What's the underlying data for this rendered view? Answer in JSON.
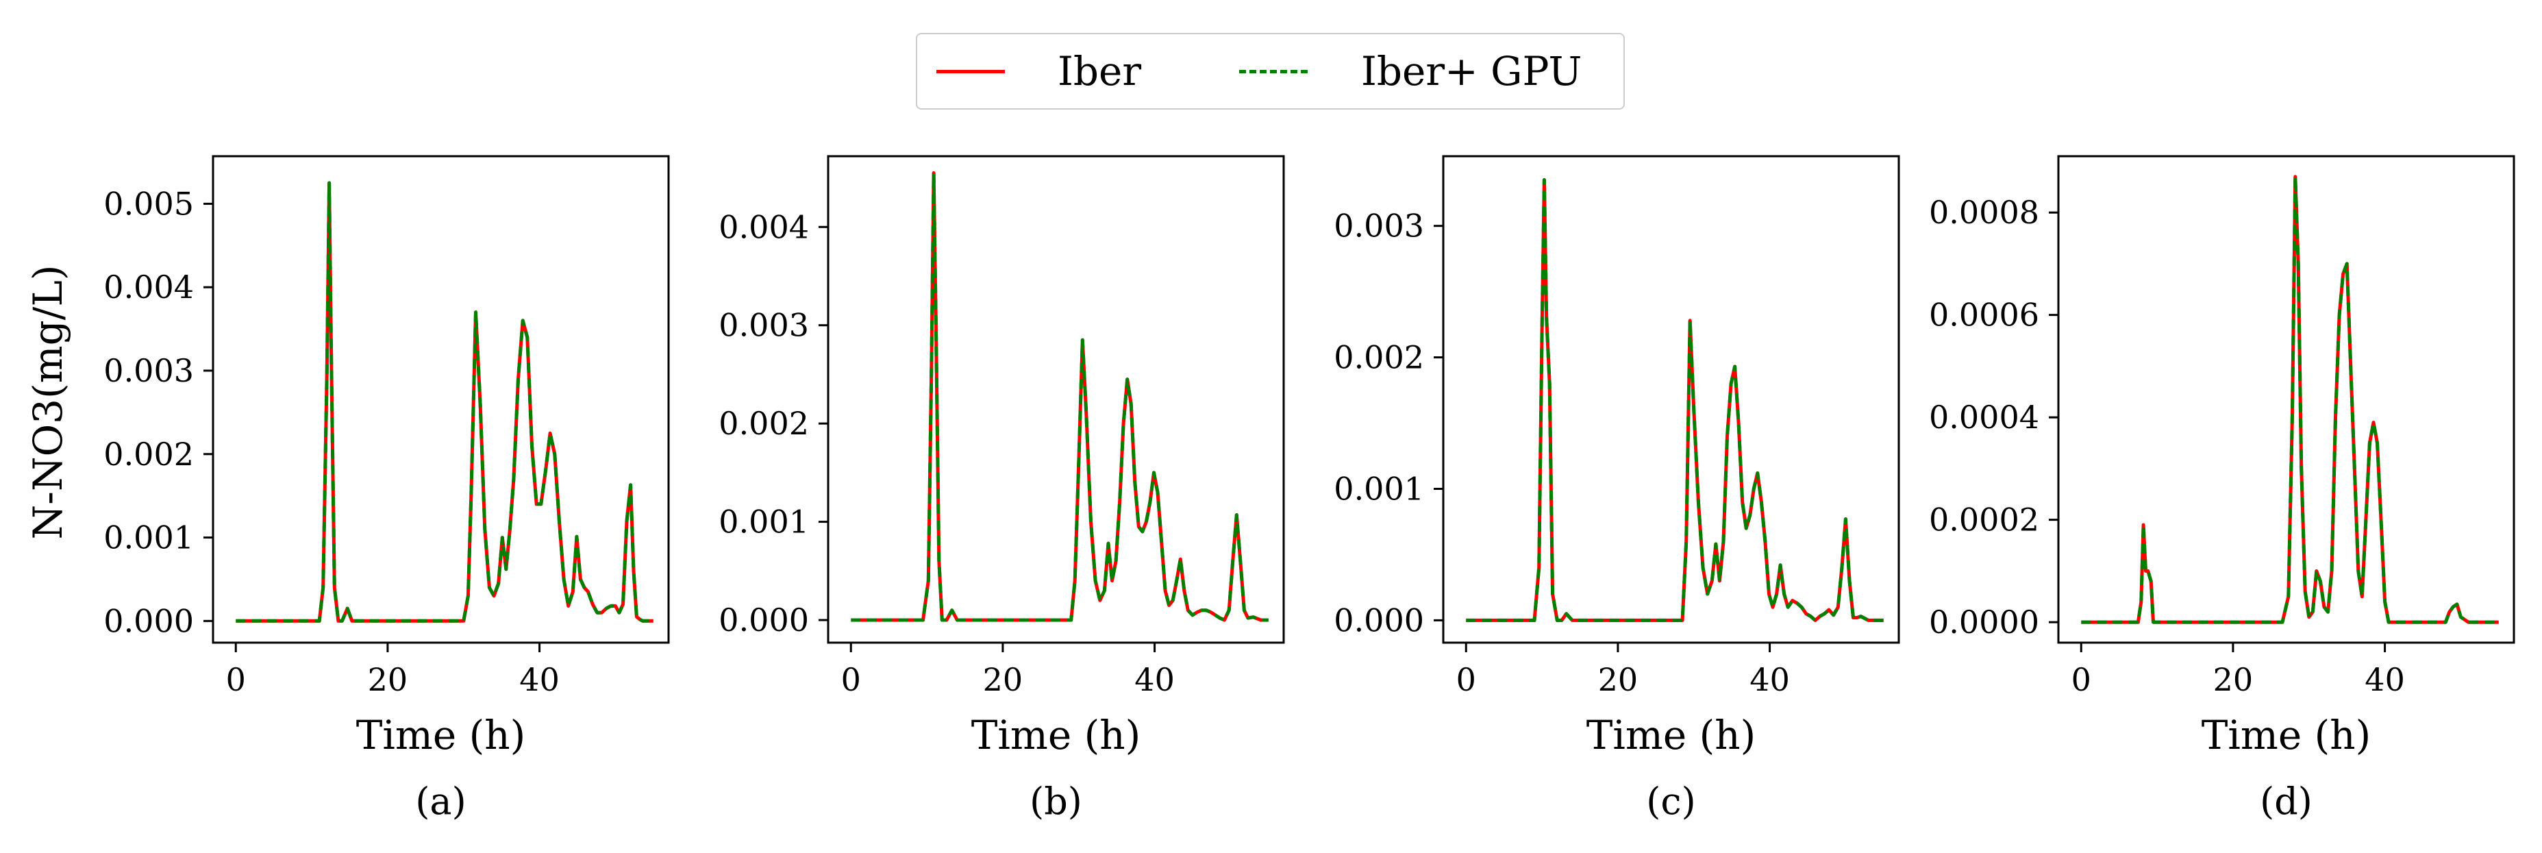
{
  "legend": {
    "series_1": "Iber",
    "series_2": "Iber+ GPU"
  },
  "colors": {
    "iber": "#ff0000",
    "iber_gpu": "#008000"
  },
  "ylabel": "N-NO3(mg/L)",
  "chart_data": [
    {
      "type": "line",
      "panel": "(a)",
      "xlabel": "Time (h)",
      "ylabel": "N-NO3(mg/L)",
      "xlim": [
        -3,
        57
      ],
      "ylim": [
        -0.00026,
        0.00557
      ],
      "xticks": [
        0,
        20,
        40
      ],
      "xtick_labels": [
        "0",
        "20",
        "40"
      ],
      "yticks": [
        0,
        0.001,
        0.002,
        0.003,
        0.004,
        0.005
      ],
      "ytick_labels": [
        "0.000",
        "0.001",
        "0.002",
        "0.003",
        "0.004",
        "0.005"
      ],
      "series": [
        {
          "name": "Iber",
          "color": "#ff0000",
          "style": "solid"
        },
        {
          "name": "Iber+ GPU",
          "color": "#008000",
          "style": "dashed"
        }
      ],
      "x": [
        0,
        10,
        11,
        11.5,
        12,
        12.3,
        12.6,
        13,
        13.5,
        14,
        14.7,
        15.3,
        16,
        20,
        28,
        30,
        30.6,
        31,
        31.6,
        32.2,
        32.8,
        33.4,
        34,
        34.6,
        35.1,
        35.6,
        36.1,
        36.6,
        37.2,
        37.8,
        38.4,
        39,
        39.6,
        40.2,
        40.8,
        41.4,
        42,
        42.6,
        43.2,
        43.8,
        44.4,
        44.9,
        45.4,
        45.9,
        46.4,
        47,
        47.6,
        48.2,
        48.8,
        49.4,
        50,
        50.5,
        51,
        51.5,
        52,
        52.4,
        52.8,
        53.2,
        53.6,
        54,
        55
      ],
      "values": [
        0,
        0,
        0,
        0.0004,
        0.003,
        0.00525,
        0.003,
        0.0004,
        0,
        0,
        0.00015,
        0,
        0,
        0,
        0,
        0,
        0.0003,
        0.0015,
        0.0037,
        0.0026,
        0.0011,
        0.0004,
        0.0003,
        0.00045,
        0.001,
        0.00062,
        0.0011,
        0.0017,
        0.0029,
        0.0036,
        0.0034,
        0.0021,
        0.0014,
        0.0014,
        0.0018,
        0.00225,
        0.002,
        0.0012,
        0.0005,
        0.00018,
        0.00035,
        0.00101,
        0.0005,
        0.0004,
        0.00035,
        0.0002,
        0.0001,
        0.0001,
        0.00015,
        0.00018,
        0.00018,
        0.0001,
        0.0002,
        0.0012,
        0.00163,
        0.0006,
        5e-05,
        2e-05,
        0,
        0,
        0
      ]
    },
    {
      "type": "line",
      "panel": "(b)",
      "xlabel": "Time (h)",
      "xlim": [
        -3,
        57
      ],
      "ylim": [
        -0.00023,
        0.00472
      ],
      "xticks": [
        0,
        20,
        40
      ],
      "xtick_labels": [
        "0",
        "20",
        "40"
      ],
      "yticks": [
        0,
        0.001,
        0.002,
        0.003,
        0.004
      ],
      "ytick_labels": [
        "0.000",
        "0.001",
        "0.002",
        "0.003",
        "0.004"
      ],
      "series": [
        {
          "name": "Iber",
          "color": "#ff0000",
          "style": "solid"
        },
        {
          "name": "Iber+ GPU",
          "color": "#008000",
          "style": "dashed"
        }
      ],
      "x": [
        0,
        9.5,
        10.2,
        10.6,
        10.9,
        11.2,
        11.6,
        12,
        12.6,
        13.3,
        14,
        20,
        27,
        29,
        29.5,
        30,
        30.5,
        31,
        31.6,
        32.2,
        32.8,
        33.4,
        33.9,
        34.4,
        34.9,
        35.4,
        35.9,
        36.4,
        36.9,
        37.4,
        37.9,
        38.4,
        38.9,
        39.4,
        39.9,
        40.4,
        40.9,
        41.4,
        41.9,
        42.4,
        42.9,
        43.4,
        43.9,
        44.4,
        45,
        45.6,
        46.2,
        46.8,
        47.4,
        48,
        48.6,
        49.2,
        49.8,
        50.3,
        50.8,
        51.3,
        51.8,
        52.3,
        53,
        54,
        55
      ],
      "values": [
        0,
        0,
        0.0004,
        0.0025,
        0.00455,
        0.003,
        0.0006,
        0,
        0,
        0.0001,
        0,
        0,
        0,
        0,
        0.0004,
        0.0016,
        0.00285,
        0.0021,
        0.001,
        0.0004,
        0.0002,
        0.0003,
        0.00078,
        0.0004,
        0.0006,
        0.0012,
        0.002,
        0.00245,
        0.0022,
        0.0014,
        0.00095,
        0.0009,
        0.001,
        0.0012,
        0.0015,
        0.0013,
        0.0008,
        0.0003,
        0.00015,
        0.0002,
        0.0004,
        0.00062,
        0.0003,
        0.0001,
        5e-05,
        8e-05,
        0.0001,
        0.0001,
        8e-05,
        5e-05,
        2e-05,
        0,
        0.0001,
        0.0006,
        0.00107,
        0.0006,
        0.0001,
        2e-05,
        3e-05,
        0,
        0
      ]
    },
    {
      "type": "line",
      "panel": "(c)",
      "xlabel": "Time (h)",
      "xlim": [
        -3,
        57
      ],
      "ylim": [
        -0.00017,
        0.00353
      ],
      "xticks": [
        0,
        20,
        40
      ],
      "xtick_labels": [
        "0",
        "20",
        "40"
      ],
      "yticks": [
        0,
        0.001,
        0.002,
        0.003
      ],
      "ytick_labels": [
        "0.000",
        "0.001",
        "0.002",
        "0.003"
      ],
      "series": [
        {
          "name": "Iber",
          "color": "#ff0000",
          "style": "solid"
        },
        {
          "name": "Iber+ GPU",
          "color": "#008000",
          "style": "dashed"
        }
      ],
      "x": [
        0,
        9,
        9.6,
        10,
        10.3,
        10.6,
        11,
        11.4,
        12,
        12.6,
        13.2,
        14,
        20,
        27,
        28.5,
        29,
        29.5,
        30,
        30.6,
        31.2,
        31.8,
        32.4,
        32.9,
        33.4,
        33.9,
        34.4,
        34.9,
        35.4,
        35.9,
        36.4,
        36.9,
        37.4,
        37.9,
        38.4,
        38.9,
        39.4,
        39.9,
        40.4,
        40.9,
        41.4,
        41.9,
        42.4,
        43,
        43.6,
        44.2,
        44.8,
        45.4,
        46,
        46.6,
        47.2,
        47.8,
        48.4,
        49,
        49.5,
        50,
        50.5,
        51,
        51.5,
        52,
        53,
        55
      ],
      "values": [
        0,
        0,
        0.0004,
        0.0022,
        0.00335,
        0.0023,
        0.0018,
        0.0002,
        0,
        0,
        5e-05,
        0,
        0,
        0,
        0,
        0.0006,
        0.00228,
        0.0016,
        0.0009,
        0.0004,
        0.0002,
        0.0003,
        0.00058,
        0.0003,
        0.0006,
        0.0014,
        0.0018,
        0.00193,
        0.0015,
        0.0009,
        0.0007,
        0.0008,
        0.001,
        0.00112,
        0.0009,
        0.0006,
        0.0002,
        0.0001,
        0.0002,
        0.00042,
        0.0002,
        0.0001,
        0.00015,
        0.00013,
        0.0001,
        5e-05,
        3e-05,
        0,
        3e-05,
        5e-05,
        8e-05,
        4e-05,
        0.0001,
        0.0004,
        0.00077,
        0.0003,
        2e-05,
        2e-05,
        3e-05,
        0,
        0
      ]
    },
    {
      "type": "line",
      "panel": "(d)",
      "xlabel": "Time (h)",
      "xlim": [
        -3,
        57
      ],
      "ylim": [
        -4e-05,
        0.00091
      ],
      "xticks": [
        0,
        20,
        40
      ],
      "xtick_labels": [
        "0",
        "20",
        "40"
      ],
      "yticks": [
        0,
        0.0002,
        0.0004,
        0.0006,
        0.0008
      ],
      "ytick_labels": [
        "0.0000",
        "0.0002",
        "0.0004",
        "0.0006",
        "0.0008"
      ],
      "series": [
        {
          "name": "Iber",
          "color": "#ff0000",
          "style": "solid"
        },
        {
          "name": "Iber+ GPU",
          "color": "#008000",
          "style": "dashed"
        }
      ],
      "x": [
        0,
        7.5,
        7.9,
        8.2,
        8.5,
        8.8,
        9.2,
        9.5,
        10,
        12,
        20,
        26.5,
        27.3,
        27.8,
        28.2,
        28.6,
        29,
        29.5,
        30,
        30.5,
        31,
        31.5,
        32,
        32.5,
        33,
        33.5,
        34,
        34.5,
        35,
        35.5,
        36,
        36.5,
        37,
        37.5,
        38,
        38.5,
        39,
        39.5,
        40,
        40.5,
        41,
        42,
        44,
        46,
        48,
        48.5,
        49,
        49.5,
        50,
        51,
        55
      ],
      "values": [
        0,
        0,
        4e-05,
        0.00019,
        0.0001,
        0.0001,
        8e-05,
        0,
        0,
        0,
        0,
        0,
        5e-05,
        0.0004,
        0.00087,
        0.0007,
        0.0003,
        6e-05,
        1e-05,
        2e-05,
        0.0001,
        8e-05,
        3e-05,
        2e-05,
        0.0001,
        0.0004,
        0.0006,
        0.00068,
        0.0007,
        0.0005,
        0.0003,
        0.0001,
        5e-05,
        0.0002,
        0.00035,
        0.00039,
        0.00035,
        0.0002,
        4e-05,
        0,
        0,
        0,
        0,
        0,
        0,
        2e-05,
        3e-05,
        3.5e-05,
        1e-05,
        0,
        0
      ]
    }
  ]
}
